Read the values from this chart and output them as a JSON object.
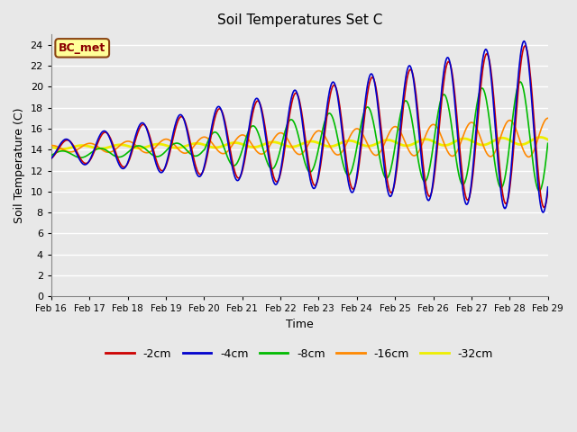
{
  "title": "Soil Temperatures Set C",
  "xlabel": "Time",
  "ylabel": "Soil Temperature (C)",
  "ylim": [
    0,
    25
  ],
  "yticks": [
    0,
    2,
    4,
    6,
    8,
    10,
    12,
    14,
    16,
    18,
    20,
    22,
    24
  ],
  "fig_bg": "#e8e8e8",
  "plot_bg": "#e8e8e8",
  "grid_color": "#ffffff",
  "annotation_text": "BC_met",
  "annotation_bg": "#ffff99",
  "annotation_border": "#8B4513",
  "series": {
    "-2cm": {
      "color": "#cc0000",
      "lw": 1.2
    },
    "-4cm": {
      "color": "#0000cc",
      "lw": 1.2
    },
    "-8cm": {
      "color": "#00bb00",
      "lw": 1.2
    },
    "-16cm": {
      "color": "#ff8800",
      "lw": 1.2
    },
    "-32cm": {
      "color": "#eeee00",
      "lw": 2.0
    }
  },
  "xlabels": [
    "Feb 16",
    "Feb 17",
    "Feb 18",
    "Feb 19",
    "Feb 20",
    "Feb 21",
    "Feb 22",
    "Feb 23",
    "Feb 24",
    "Feb 25",
    "Feb 26",
    "Feb 27",
    "Feb 28",
    "Feb 29"
  ]
}
